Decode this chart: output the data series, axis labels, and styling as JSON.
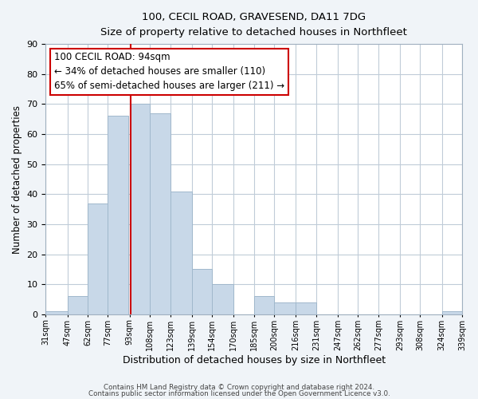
{
  "title_line1": "100, CECIL ROAD, GRAVESEND, DA11 7DG",
  "title_line2": "Size of property relative to detached houses in Northfleet",
  "xlabel": "Distribution of detached houses by size in Northfleet",
  "ylabel": "Number of detached properties",
  "footer_line1": "Contains HM Land Registry data © Crown copyright and database right 2024.",
  "footer_line2": "Contains public sector information licensed under the Open Government Licence v3.0.",
  "annotation_line1": "100 CECIL ROAD: 94sqm",
  "annotation_line2": "← 34% of detached houses are smaller (110)",
  "annotation_line3": "65% of semi-detached houses are larger (211) →",
  "bar_left_edges": [
    31,
    47,
    62,
    77,
    93,
    108,
    123,
    139,
    154,
    170,
    185,
    200,
    216,
    231,
    247,
    262,
    277,
    293,
    308,
    324
  ],
  "bar_widths": [
    16,
    15,
    15,
    15,
    15,
    15,
    16,
    15,
    16,
    15,
    15,
    16,
    15,
    16,
    15,
    15,
    16,
    15,
    16,
    15
  ],
  "bar_heights": [
    1,
    6,
    37,
    66,
    70,
    67,
    41,
    15,
    10,
    0,
    6,
    4,
    4,
    0,
    0,
    0,
    0,
    0,
    0,
    1
  ],
  "bar_color": "#c8d8e8",
  "bar_edgecolor": "#a0b8cc",
  "vline_x": 94,
  "vline_color": "#cc0000",
  "tick_labels": [
    "31sqm",
    "47sqm",
    "62sqm",
    "77sqm",
    "93sqm",
    "108sqm",
    "123sqm",
    "139sqm",
    "154sqm",
    "170sqm",
    "185sqm",
    "200sqm",
    "216sqm",
    "231sqm",
    "247sqm",
    "262sqm",
    "277sqm",
    "293sqm",
    "308sqm",
    "324sqm",
    "339sqm"
  ],
  "ylim": [
    0,
    90
  ],
  "yticks": [
    0,
    10,
    20,
    30,
    40,
    50,
    60,
    70,
    80,
    90
  ],
  "bg_color": "#f0f4f8",
  "plot_bg_color": "#ffffff",
  "grid_color": "#c0ccd8",
  "box_facecolor": "#ffffff",
  "box_edgecolor": "#cc0000",
  "annotation_fontsize": 8.5
}
